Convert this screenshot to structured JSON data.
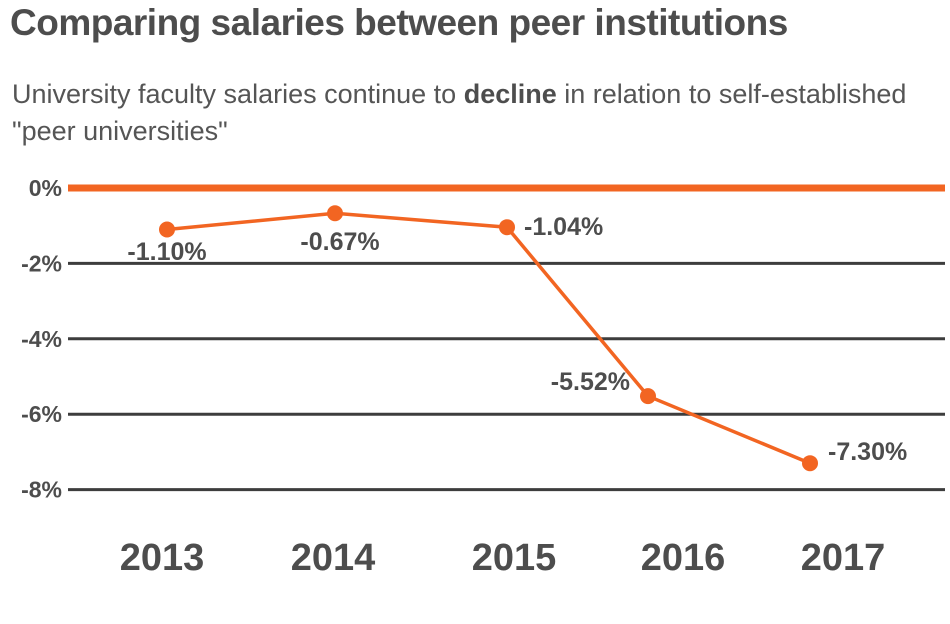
{
  "chart_data": {
    "type": "line",
    "title": "Comparing salaries between peer institutions",
    "subtitle": {
      "before": "University faculty salaries continue to ",
      "bold": "decline",
      "after": " in relation to self-established \"peer universities\""
    },
    "categories": [
      "2013",
      "2014",
      "2015",
      "2016",
      "2017"
    ],
    "values": [
      -1.1,
      -0.67,
      -1.04,
      -5.52,
      -7.3
    ],
    "data_labels": [
      "-1.10%",
      "-0.67%",
      "-1.04%",
      "-5.52%",
      "-7.30%"
    ],
    "y_ticks": [
      0,
      -2,
      -4,
      -6,
      -8
    ],
    "y_tick_labels": [
      "0%",
      "-2%",
      "-4%",
      "-6%",
      "-8%"
    ],
    "ylim": [
      -8,
      0
    ],
    "grid": true,
    "colors": {
      "line": "#f26522",
      "zero_line": "#f26522",
      "grid": "#3d3d3d",
      "text": "#4d4d4d"
    }
  }
}
